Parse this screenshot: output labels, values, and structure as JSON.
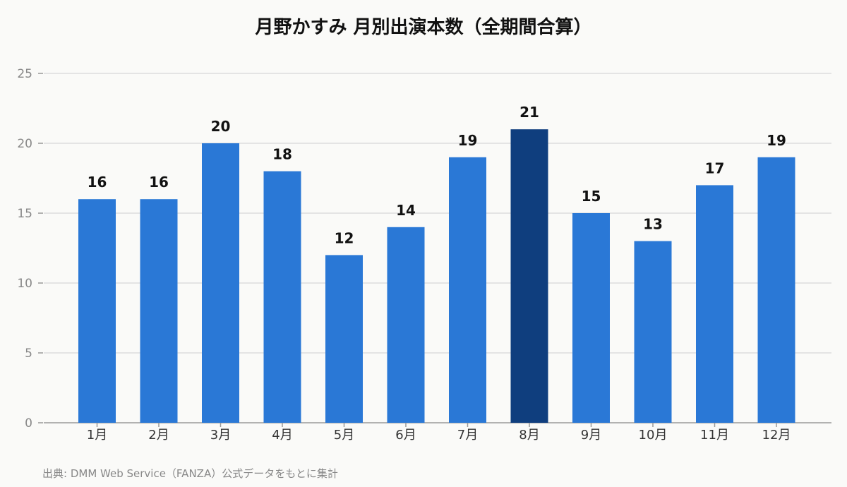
{
  "chart_data": {
    "type": "bar",
    "title": "月野かすみ 月別出演本数（全期間合算）",
    "categories": [
      "1月",
      "2月",
      "3月",
      "4月",
      "5月",
      "6月",
      "7月",
      "8月",
      "9月",
      "10月",
      "11月",
      "12月"
    ],
    "values": [
      16,
      16,
      20,
      18,
      12,
      14,
      19,
      21,
      15,
      13,
      17,
      19
    ],
    "ylim": [
      0,
      25
    ],
    "yticks": [
      0,
      5,
      10,
      15,
      20,
      25
    ],
    "grid": true,
    "highlight_index": 7,
    "colors": {
      "bar": "#2a78d6",
      "highlight": "#0f3e7e",
      "grid": "#dddddd",
      "axis": "#999999"
    }
  },
  "source_note": "出典: DMM Web Service（FANZA）公式データをもとに集計"
}
